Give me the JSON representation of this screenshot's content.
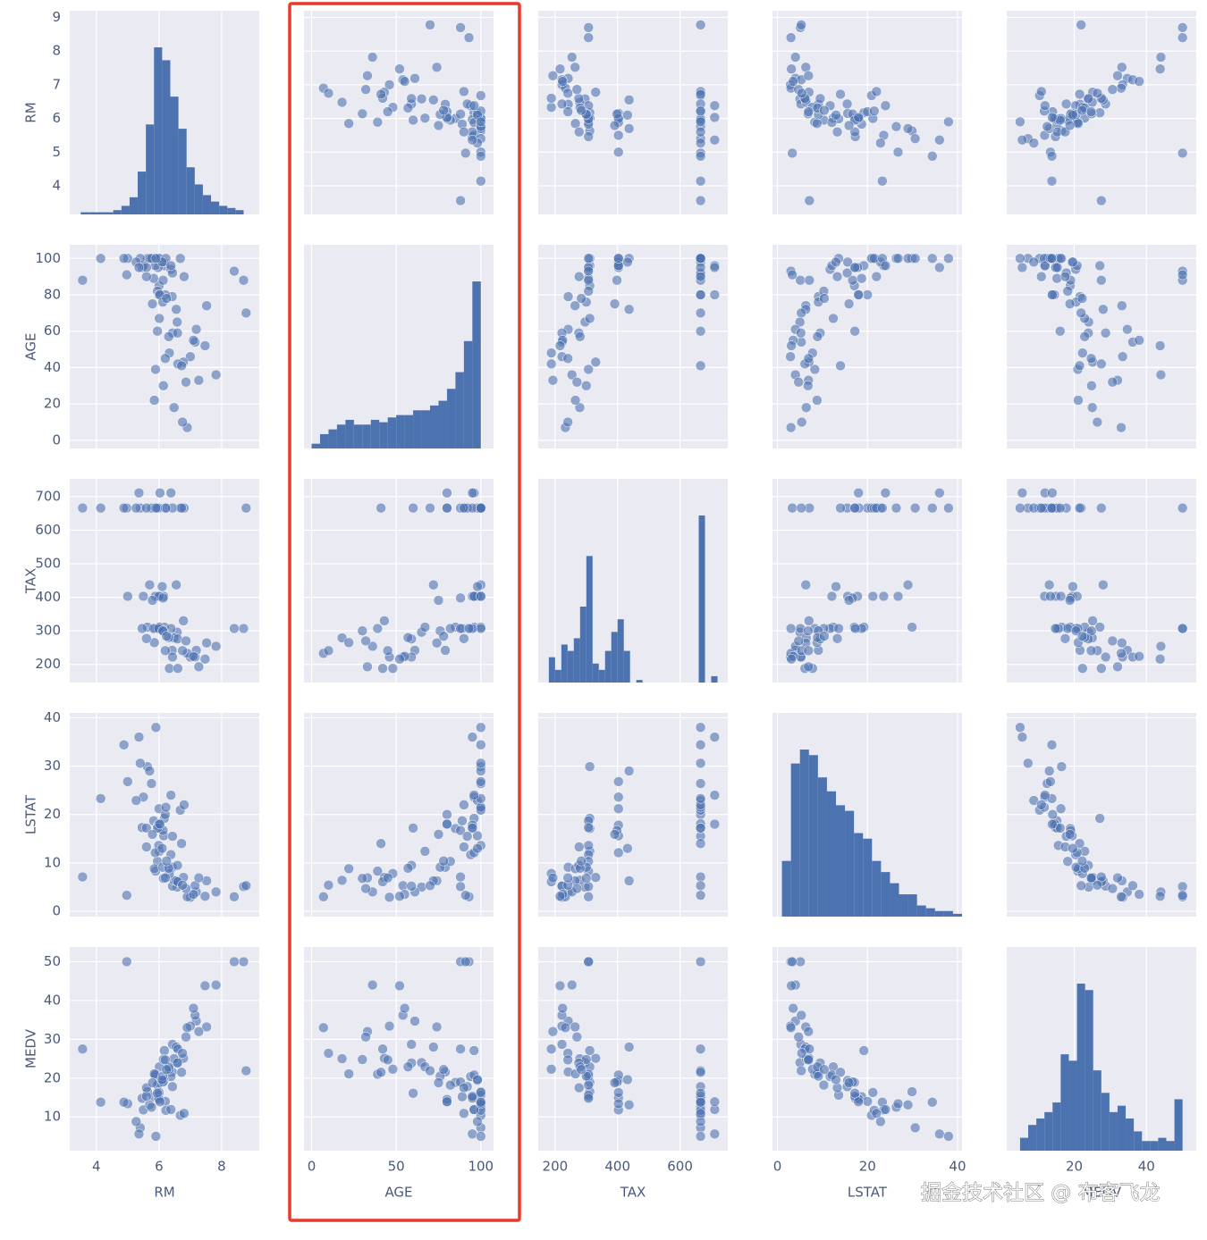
{
  "chart_data": {
    "type": "pairplot",
    "color": "#4c72b0",
    "grid": true,
    "highlight": "AGE",
    "watermark": "掘金技术社区 @ 布客飞龙",
    "variables": [
      {
        "name": "RM",
        "lim": [
          3.15,
          9.2
        ],
        "xticks": [
          4,
          6,
          8
        ],
        "yticks": [
          4,
          5,
          6,
          7,
          8,
          9
        ],
        "bins": [
          3.5,
          3.76,
          4.02,
          4.28,
          4.54,
          4.8,
          5.06,
          5.32,
          5.58,
          5.84,
          6.1,
          6.36,
          6.62,
          6.88,
          7.14,
          7.4,
          7.66,
          7.92,
          8.18,
          8.44,
          8.7
        ],
        "counts": [
          1,
          1,
          1,
          1,
          2,
          4,
          8,
          20,
          42,
          78,
          72,
          55,
          40,
          22,
          14,
          9,
          6,
          4,
          3,
          2
        ]
      },
      {
        "name": "AGE",
        "lim": [
          -4.5,
          107.5
        ],
        "xticks": [
          0,
          50,
          100
        ],
        "yticks": [
          0,
          20,
          40,
          60,
          80,
          100
        ],
        "bins": [
          0,
          5,
          10,
          15,
          20,
          25,
          30,
          35,
          40,
          45,
          50,
          55,
          60,
          65,
          70,
          75,
          80,
          85,
          90,
          95,
          100
        ],
        "counts": [
          2,
          6,
          8,
          10,
          12,
          10,
          10,
          12,
          11,
          13,
          14,
          14,
          16,
          16,
          18,
          20,
          25,
          32,
          45,
          70
        ]
      },
      {
        "name": "TAX",
        "lim": [
          146,
          753
        ],
        "xticks": [
          200,
          400,
          600
        ],
        "yticks": [
          200,
          300,
          400,
          500,
          600,
          700
        ],
        "bins": [
          180,
          200,
          220,
          240,
          260,
          280,
          300,
          320,
          340,
          360,
          380,
          400,
          420,
          440,
          460,
          480,
          500,
          520,
          540,
          560,
          580,
          600,
          620,
          640,
          660,
          680,
          700,
          720
        ],
        "counts": [
          20,
          10,
          30,
          25,
          35,
          60,
          100,
          15,
          10,
          25,
          40,
          50,
          25,
          0,
          2,
          0,
          0,
          0,
          0,
          0,
          0,
          0,
          0,
          0,
          132,
          0,
          5
        ]
      },
      {
        "name": "LSTAT",
        "lim": [
          -1.1,
          41
        ],
        "xticks": [
          0,
          20,
          40
        ],
        "yticks": [
          0,
          10,
          20,
          30,
          40
        ],
        "bins": [
          1,
          3,
          5,
          7,
          9,
          11,
          13,
          15,
          17,
          19,
          21,
          23,
          25,
          27,
          29,
          31,
          33,
          35,
          37,
          39,
          41
        ],
        "counts": [
          20,
          55,
          60,
          58,
          50,
          45,
          40,
          38,
          30,
          28,
          20,
          16,
          12,
          8,
          8,
          4,
          3,
          2,
          2,
          1
        ]
      },
      {
        "name": "MEDV",
        "lim": [
          1.3,
          53.8
        ],
        "xticks": [
          20,
          40
        ],
        "yticks": [
          10,
          20,
          30,
          40,
          50
        ],
        "bins": [
          5,
          7.25,
          9.5,
          11.75,
          14,
          16.25,
          18.5,
          20.75,
          23,
          25.25,
          27.5,
          29.75,
          32,
          34.25,
          36.5,
          38.75,
          41,
          43.25,
          45.5,
          47.75,
          50
        ],
        "counts": [
          4,
          8,
          10,
          12,
          15,
          30,
          28,
          52,
          50,
          25,
          18,
          12,
          14,
          10,
          6,
          3,
          3,
          4,
          3,
          16
        ]
      }
    ],
    "data": {
      "RM": [
        6.58,
        6.42,
        7.19,
        7.0,
        7.15,
        6.43,
        6.01,
        6.17,
        5.63,
        6.0,
        6.38,
        5.89,
        5.95,
        5.83,
        5.99,
        5.46,
        6.48,
        6.9,
        7.82,
        8.7,
        8.4,
        7.52,
        6.78,
        5.97,
        6.15,
        5.88,
        6.0,
        5.5,
        6.55,
        5.7,
        6.13,
        6.33,
        6.6,
        7.27,
        6.14,
        5.85,
        6.2,
        5.4,
        4.97,
        6.68,
        5.27,
        6.43,
        5.76,
        6.0,
        3.56,
        6.22,
        5.6,
        8.78,
        6.8,
        4.14,
        5.95,
        6.72,
        6.38,
        6.03,
        5.36,
        6.12,
        6.59,
        6.86,
        7.1,
        5.6,
        5.0,
        6.1,
        6.31,
        5.79,
        6.75,
        7.47,
        6.24,
        4.88,
        6.2,
        5.9
      ],
      "AGE": [
        65,
        79,
        61,
        46,
        54,
        59,
        67,
        96,
        100,
        85,
        94,
        39,
        82,
        89,
        100,
        95,
        18,
        7,
        36,
        88,
        93,
        74,
        43,
        95,
        98,
        96,
        100,
        96,
        72,
        100,
        88,
        48,
        42,
        33,
        30,
        22,
        80,
        100,
        91,
        100,
        98,
        92,
        100,
        80,
        88,
        100,
        95,
        70,
        90,
        100,
        60,
        41,
        96,
        80,
        95,
        76,
        59,
        32,
        55,
        90,
        100,
        98,
        57,
        75,
        10,
        52,
        78,
        100,
        45,
        100
      ],
      "TAX": [
        296,
        242,
        242,
        222,
        222,
        222,
        311,
        311,
        311,
        311,
        307,
        307,
        307,
        307,
        307,
        307,
        279,
        233,
        254,
        307,
        307,
        264,
        330,
        403,
        403,
        403,
        403,
        403,
        437,
        437,
        398,
        188,
        188,
        193,
        300,
        265,
        666,
        666,
        666,
        666,
        666,
        666,
        666,
        666,
        666,
        666,
        666,
        666,
        666,
        666,
        666,
        666,
        711,
        711,
        711,
        300,
        276,
        270,
        224,
        277,
        403,
        432,
        280,
        391,
        241,
        216,
        284,
        666,
        241,
        666
      ],
      "LSTAT": [
        5.0,
        9.1,
        4.0,
        2.9,
        5.3,
        5.2,
        12.4,
        19.2,
        29.9,
        17.1,
        11.7,
        8.3,
        10.3,
        18.7,
        13.6,
        17.3,
        6.4,
        3.0,
        4.0,
        5.1,
        3.0,
        6.3,
        7.0,
        17.8,
        15.6,
        12.1,
        21.2,
        23.6,
        6.3,
        29,
        16.7,
        7.8,
        6.1,
        6.9,
        6.8,
        8.8,
        20.0,
        30.6,
        3.3,
        20.9,
        22.9,
        15.5,
        26.4,
        18.1,
        7.1,
        21.5,
        17.2,
        5.3,
        22.0,
        23.3,
        17.2,
        14.0,
        24.0,
        18.0,
        36.0,
        9.1,
        9.5,
        4.7,
        3.5,
        13.3,
        26.8,
        13.0,
        8.9,
        15.9,
        5.4,
        3.1,
        10.4,
        34.4,
        6.9,
        38
      ],
      "MEDV": [
        24,
        21.6,
        34.7,
        33.4,
        36.2,
        28.7,
        22.9,
        27.1,
        16.5,
        18.9,
        20.4,
        21,
        18.2,
        15.2,
        15.6,
        14.8,
        25,
        33,
        44,
        50,
        50,
        33.2,
        25.1,
        14.9,
        19.4,
        20.8,
        16.3,
        11.8,
        28,
        13.1,
        19,
        22.3,
        27.5,
        32.0,
        24.8,
        21.1,
        14,
        7.2,
        50,
        10.4,
        8.8,
        17.8,
        12.5,
        14.5,
        27.5,
        11.7,
        15.3,
        21.9,
        10.9,
        13.8,
        16.1,
        21.5,
        11.9,
        13.9,
        5.6,
        20.5,
        23.9,
        30.6,
        38,
        17.5,
        13.4,
        19.6,
        22.9,
        18.8,
        26.4,
        43.8,
        22.2,
        13.8,
        24.7,
        5.0
      ]
    }
  }
}
